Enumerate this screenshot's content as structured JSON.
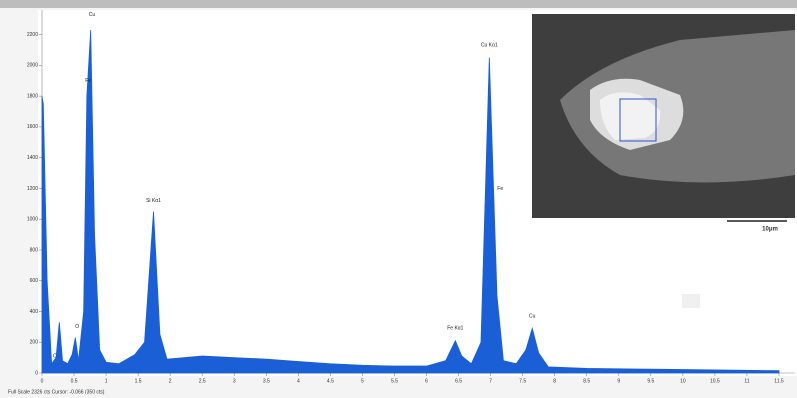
{
  "chart_data": {
    "type": "area",
    "x": [
      0,
      0.02,
      0.08,
      0.15,
      0.22,
      0.27,
      0.32,
      0.4,
      0.47,
      0.52,
      0.57,
      0.65,
      0.7,
      0.76,
      0.82,
      0.9,
      1.0,
      1.2,
      1.45,
      1.6,
      1.74,
      1.84,
      1.95,
      2.5,
      3.0,
      3.5,
      4.0,
      4.5,
      5.0,
      5.5,
      6.0,
      6.3,
      6.45,
      6.55,
      6.7,
      6.85,
      6.98,
      7.1,
      7.2,
      7.4,
      7.55,
      7.65,
      7.75,
      7.9,
      8.5,
      9.5,
      10.5,
      11.5
    ],
    "values": [
      1800,
      1750,
      600,
      60,
      100,
      330,
      80,
      60,
      120,
      230,
      80,
      400,
      1800,
      2230,
      900,
      150,
      70,
      60,
      120,
      200,
      1050,
      250,
      90,
      110,
      100,
      90,
      75,
      60,
      50,
      45,
      45,
      80,
      210,
      110,
      60,
      200,
      2050,
      500,
      80,
      60,
      150,
      290,
      130,
      40,
      30,
      25,
      20,
      15
    ],
    "color": "#1a5fd6",
    "xlim": [
      0,
      11.75
    ],
    "ylim": [
      0,
      2360
    ],
    "xticks": [
      0,
      0.5,
      1,
      1.5,
      2,
      2.5,
      3,
      3.5,
      4,
      4.5,
      5,
      5.5,
      6,
      6.5,
      7,
      7.5,
      8,
      8.5,
      9,
      9.5,
      10,
      10.5,
      11,
      11.5
    ],
    "yticks": [
      0,
      200,
      400,
      600,
      800,
      1000,
      1200,
      1400,
      1600,
      1800,
      2000,
      2200
    ],
    "annotations": [
      {
        "text": "Cu",
        "x": 0.78,
        "y": 2330
      },
      {
        "text": "Fe",
        "x": 0.72,
        "y": 1900
      },
      {
        "text": "C",
        "x": 0.2,
        "y": 110
      },
      {
        "text": "O",
        "x": 0.55,
        "y": 300
      },
      {
        "text": "Si Kα1",
        "x": 1.74,
        "y": 1120
      },
      {
        "text": "Fe Kα1",
        "x": 6.45,
        "y": 290
      },
      {
        "text": "Cu Kα1",
        "x": 6.98,
        "y": 2130
      },
      {
        "text": "Fe",
        "x": 7.15,
        "y": 1200
      },
      {
        "text": "Cu",
        "x": 7.65,
        "y": 370
      }
    ],
    "footer": "Full Scale 2326 cts Cursor: -0.066 (350 cts)",
    "inset_scale_label": "10μm"
  }
}
